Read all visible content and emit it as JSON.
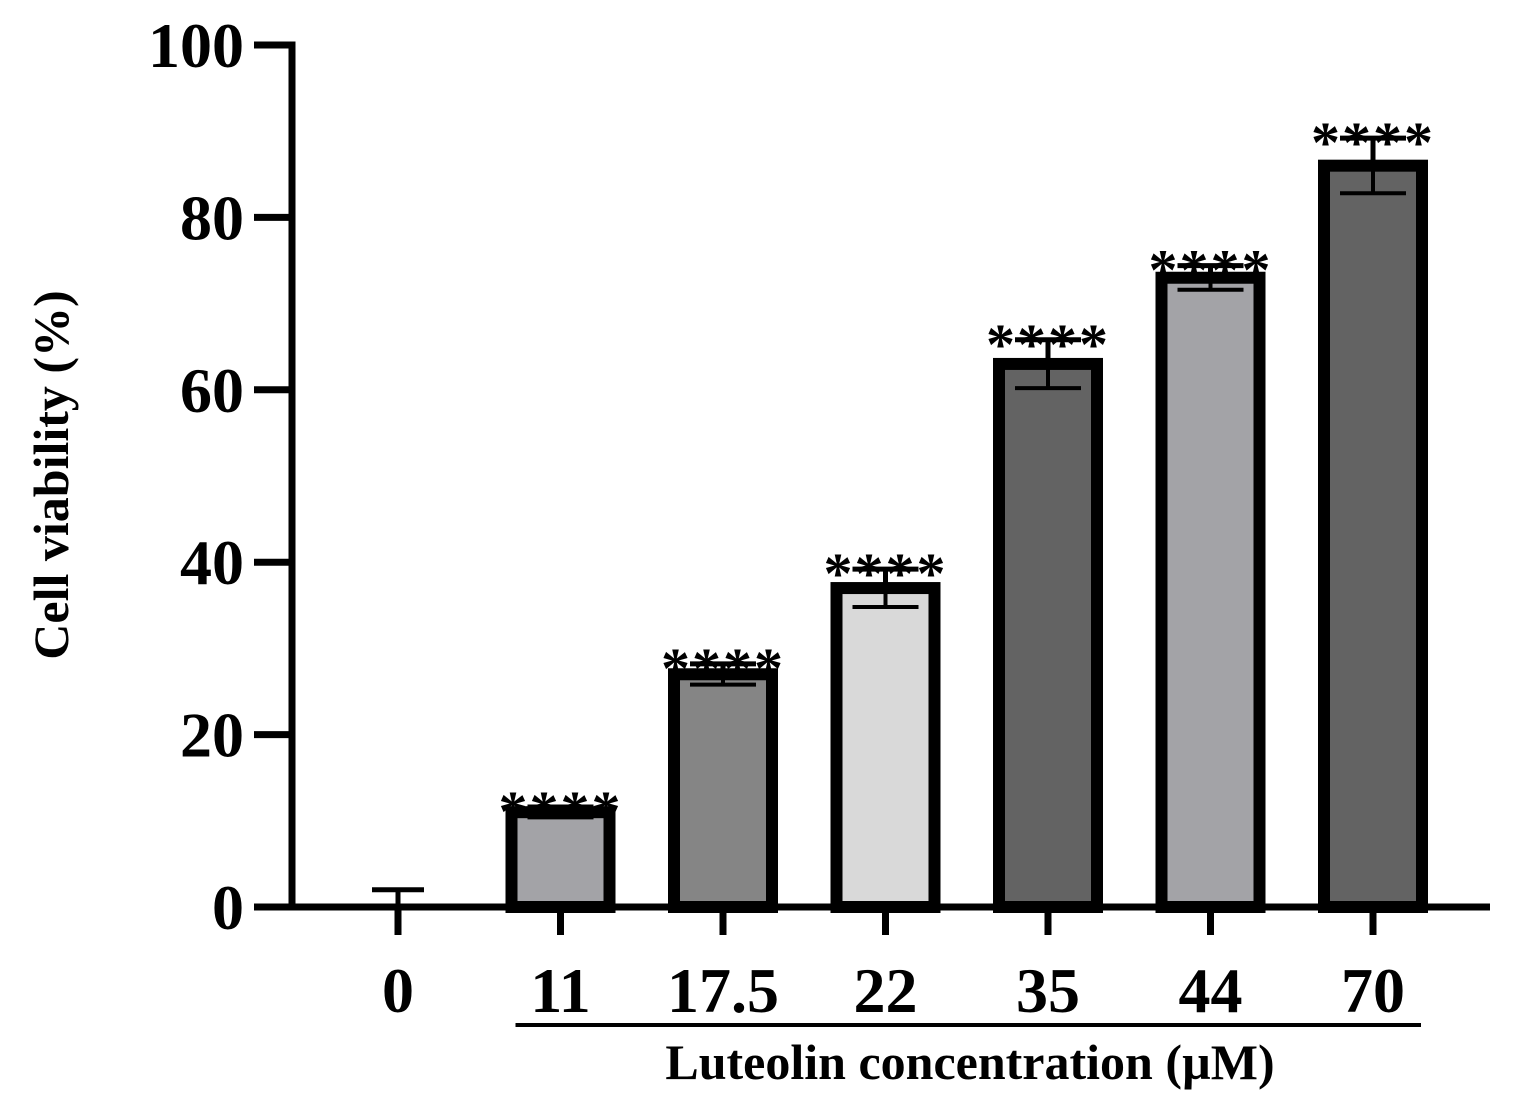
{
  "chart_data": {
    "type": "bar",
    "title": "",
    "ylabel": "Cell viability (%)",
    "xlabel": "Luteolin concentration (µM)",
    "ylim": [
      0,
      100
    ],
    "yticks": [
      0,
      20,
      40,
      60,
      80,
      100
    ],
    "categories": [
      "0",
      "11",
      "17.5",
      "22",
      "35",
      "44",
      "70"
    ],
    "values": [
      0,
      11,
      27,
      37,
      63,
      73,
      86
    ],
    "errors": [
      2,
      0.6,
      1.2,
      2.2,
      2.8,
      1.4,
      3.2
    ],
    "significance": [
      "",
      "****",
      "****",
      "****",
      "****",
      "****",
      "****"
    ],
    "bar_colors": [
      "#ffffff",
      "#a3a3a7",
      "#858585",
      "#d9d9d9",
      "#636363",
      "#a3a3a7",
      "#636363"
    ],
    "grid": false,
    "legend": "none",
    "group_bracket": {
      "from": "11",
      "to": "70",
      "label": "Luteolin concentration (µM)"
    }
  }
}
